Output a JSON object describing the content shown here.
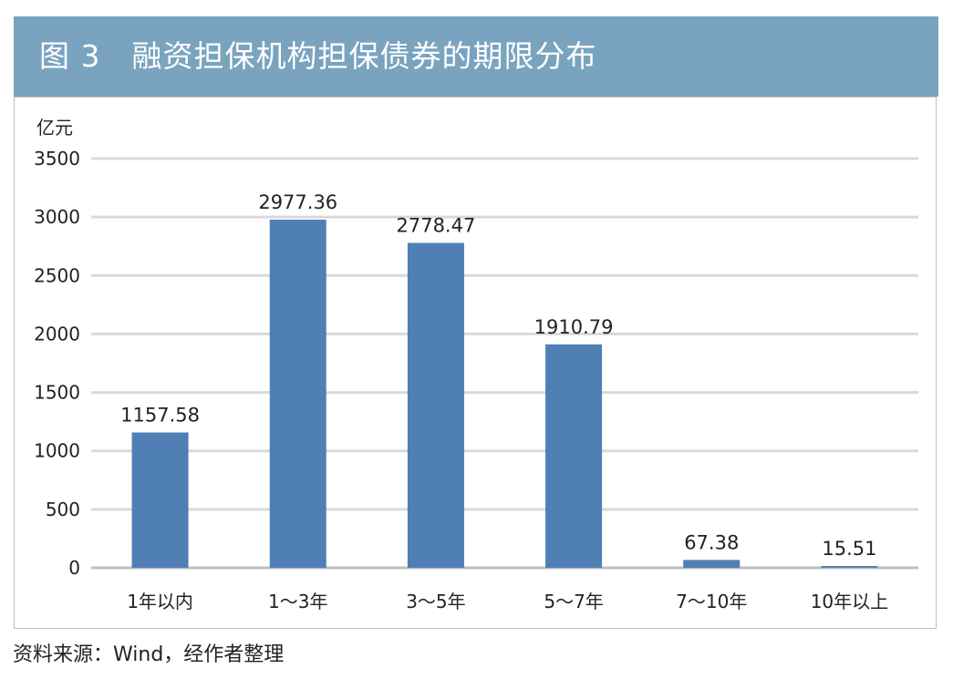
{
  "header": {
    "title": "图 3　融资担保机构担保债券的期限分布"
  },
  "source": "资料来源：Wind，经作者整理",
  "colors": {
    "header_bg": "#7aa3bf",
    "bar": "#4f7fb5",
    "grid": "#d9d9d9"
  },
  "chart_data": {
    "type": "bar",
    "title": "",
    "ylabel": "亿元",
    "xlabel": "",
    "categories": [
      "1年以内",
      "1～3年",
      "3～5年",
      "5～7年",
      "7～10年",
      "10年以上"
    ],
    "values": [
      1157.58,
      2977.36,
      2778.47,
      1910.79,
      67.38,
      15.51
    ],
    "data_labels": [
      "1157.58",
      "2977.36",
      "2778.47",
      "1910.79",
      "67.38",
      "15.51"
    ],
    "ylim": [
      0,
      3500
    ],
    "yticks": [
      0,
      500,
      1000,
      1500,
      2000,
      2500,
      3000,
      3500
    ],
    "grid": true,
    "legend": "none"
  }
}
